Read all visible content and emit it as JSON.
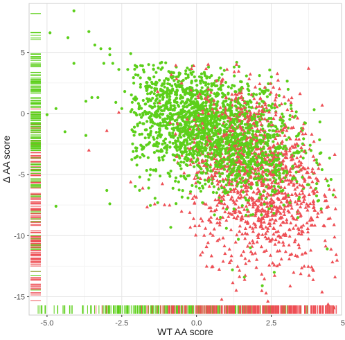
{
  "chart_data": {
    "type": "scatter",
    "title": "",
    "xlabel": "WT AA score",
    "ylabel": "Δ AA score",
    "xlim": [
      -5.6,
      4.85
    ],
    "ylim": [
      -16.5,
      9.0
    ],
    "x_ticks": [
      -5.0,
      -2.5,
      0.0,
      2.5,
      5.0
    ],
    "x_tick_labels": [
      "-5.0",
      "-2.5",
      "0.0",
      "2.5",
      "5.0"
    ],
    "y_ticks": [
      5,
      0,
      -5,
      -10,
      -15
    ],
    "y_tick_labels": [
      "5",
      "0",
      "-5",
      "-10",
      "-15"
    ],
    "grid": true,
    "rug": true,
    "colors": {
      "green": "#5ccf1a",
      "red": "#ee4f55",
      "grid_major": "#e4e4e4",
      "grid_minor": "#f3f3f3",
      "panel_border": "#cccccc"
    },
    "series": [
      {
        "marker": "circle",
        "color": "#5ccf1a",
        "points": [
          [
            -4.1,
            8.4
          ],
          [
            -4.9,
            6.6
          ],
          [
            -4.3,
            6.2
          ],
          [
            -3.6,
            6.7
          ],
          [
            -3.4,
            5.6
          ],
          [
            -3.2,
            5.3
          ],
          [
            -2.9,
            5.3
          ],
          [
            -2.9,
            4.8
          ],
          [
            -2.2,
            4.9
          ],
          [
            -4.1,
            4.1
          ],
          [
            -3.1,
            4.1
          ],
          [
            -2.8,
            4.1
          ],
          [
            -2.6,
            3.6
          ],
          [
            -2.3,
            3.6
          ],
          [
            -2.0,
            3.8
          ],
          [
            -1.6,
            4.0
          ],
          [
            -4.7,
            0.4
          ],
          [
            -5.0,
            -0.1
          ],
          [
            -4.4,
            -1.5
          ],
          [
            -3.7,
            -1.8
          ],
          [
            -3.0,
            -6.3
          ],
          [
            -2.9,
            -7.4
          ],
          [
            -4.7,
            -7.6
          ],
          [
            -3.5,
            1.3
          ],
          [
            -3.3,
            1.3
          ],
          [
            -3.7,
            1.0
          ],
          [
            -2.7,
            0.9
          ],
          [
            -2.4,
            1.8
          ],
          [
            -2.5,
            0.4
          ],
          [
            -2.1,
            1.2
          ],
          [
            -1.6,
            2.9
          ],
          [
            -1.4,
            2.4
          ],
          [
            -1.1,
            2.4
          ],
          [
            -0.8,
            2.0
          ],
          [
            -0.5,
            2.6
          ],
          [
            0.5,
            3.1
          ],
          [
            0.4,
            2.4
          ],
          [
            0.8,
            2.1
          ],
          [
            1.2,
            2.3
          ],
          [
            1.5,
            2.0
          ],
          [
            2.1,
            0.8
          ],
          [
            2.9,
            -0.6
          ],
          [
            3.4,
            -1.8
          ],
          [
            3.8,
            -2.6
          ],
          [
            4.2,
            -4.6
          ],
          [
            4.5,
            -5.4
          ],
          [
            2.6,
            -13.0
          ],
          [
            2.2,
            -14.1
          ],
          [
            1.6,
            -13.4
          ],
          [
            1.2,
            -12.8
          ],
          [
            -1.8,
            0.0
          ],
          [
            -1.5,
            -0.5
          ],
          [
            -1.2,
            -1.0
          ],
          [
            -0.8,
            -1.6
          ],
          [
            -0.4,
            -2.2
          ],
          [
            0.0,
            -2.6
          ],
          [
            0.3,
            -3.5
          ],
          [
            0.7,
            -4.2
          ],
          [
            1.1,
            -5.0
          ],
          [
            1.5,
            -6.0
          ],
          [
            -1.0,
            -3.2
          ],
          [
            -0.6,
            -5.6
          ],
          [
            -0.2,
            -6.4
          ],
          [
            0.2,
            -7.3
          ],
          [
            0.6,
            -8.3
          ],
          [
            1.0,
            -9.4
          ],
          [
            1.4,
            -10.3
          ],
          [
            1.8,
            -11.0
          ],
          [
            -1.9,
            -5.2
          ],
          [
            -1.6,
            -6.1
          ],
          [
            -1.3,
            -7.3
          ]
        ]
      },
      {
        "marker": "triangle",
        "color": "#ee4f55",
        "points": [
          [
            4.4,
            -15.6
          ],
          [
            4.6,
            -15.9
          ],
          [
            4.2,
            -14.6
          ],
          [
            3.9,
            -13.6
          ],
          [
            3.6,
            -12.5
          ],
          [
            3.1,
            -11.9
          ],
          [
            2.6,
            -12.4
          ],
          [
            2.0,
            -12.6
          ],
          [
            1.5,
            -11.6
          ],
          [
            1.1,
            -11.1
          ],
          [
            0.7,
            -10.4
          ],
          [
            0.3,
            -9.4
          ],
          [
            -0.1,
            -8.6
          ],
          [
            -0.5,
            -8.0
          ],
          [
            -0.9,
            -7.5
          ],
          [
            -1.4,
            -7.4
          ],
          [
            -1.8,
            -6.1
          ],
          [
            -2.2,
            -5.6
          ],
          [
            -3.6,
            -3.0
          ],
          [
            -3.0,
            -1.4
          ],
          [
            -2.6,
            0.1
          ],
          [
            -1.3,
            1.8
          ],
          [
            -0.5,
            2.5
          ],
          [
            0.4,
            2.0
          ],
          [
            1.3,
            1.6
          ],
          [
            2.2,
            0.3
          ],
          [
            3.0,
            -1.1
          ],
          [
            3.6,
            -3.1
          ],
          [
            4.0,
            -5.3
          ],
          [
            4.4,
            -7.6
          ],
          [
            4.6,
            -9.1
          ],
          [
            4.5,
            -11.1
          ],
          [
            4.7,
            -12.0
          ],
          [
            4.3,
            -10.4
          ],
          [
            3.2,
            -3.4
          ],
          [
            3.5,
            -4.6
          ],
          [
            2.4,
            -6.1
          ],
          [
            1.8,
            -5.2
          ]
        ]
      }
    ],
    "densities": [
      {
        "color": "#5ccf1a",
        "center": [
          0.0,
          -0.5
        ],
        "spread": [
          1.5,
          2.3
        ],
        "tilt": -0.5,
        "count": 1500
      },
      {
        "color": "#ee4f55",
        "center": [
          2.0,
          -5.0
        ],
        "spread": [
          1.1,
          3.7
        ],
        "tilt": -0.8,
        "count": 1300
      },
      {
        "color": "#5ccf1a",
        "center": [
          1.3,
          -3.2
        ],
        "spread": [
          1.2,
          2.0
        ],
        "tilt": -0.6,
        "count": 700
      }
    ],
    "rug_x": {
      "green_bins": [
        [
          -5.3,
          -5.0,
          6
        ],
        [
          -4.8,
          -4.0,
          10
        ],
        [
          -3.9,
          -3.0,
          16
        ],
        [
          -3.0,
          -2.5,
          20
        ],
        [
          -2.5,
          -1.5,
          40
        ],
        [
          -1.5,
          0.0,
          70
        ],
        [
          0.0,
          1.5,
          60
        ],
        [
          1.5,
          2.5,
          30
        ],
        [
          2.5,
          3.5,
          16
        ],
        [
          3.5,
          4.6,
          7
        ]
      ],
      "red_bins": [
        [
          -3.5,
          -3.0,
          3
        ],
        [
          -2.0,
          -1.0,
          10
        ],
        [
          -1.0,
          0.0,
          25
        ],
        [
          0.0,
          1.0,
          45
        ],
        [
          1.0,
          2.0,
          60
        ],
        [
          2.0,
          3.0,
          75
        ],
        [
          3.0,
          4.0,
          55
        ],
        [
          4.0,
          4.7,
          35
        ]
      ]
    },
    "rug_y": {
      "green_bins": [
        [
          8.0,
          8.4,
          1
        ],
        [
          6.0,
          6.8,
          5
        ],
        [
          3.0,
          5.0,
          16
        ],
        [
          0.0,
          3.0,
          45
        ],
        [
          -3.0,
          0.0,
          55
        ],
        [
          -6.0,
          -3.0,
          25
        ],
        [
          -9.0,
          -6.0,
          10
        ],
        [
          -12.0,
          -9.0,
          6
        ],
        [
          -15.0,
          -12.0,
          3
        ]
      ],
      "red_bins": [
        [
          -3.0,
          1.0,
          14
        ],
        [
          -6.0,
          -3.0,
          30
        ],
        [
          -9.0,
          -6.0,
          40
        ],
        [
          -12.0,
          -9.0,
          40
        ],
        [
          -15.5,
          -12.0,
          25
        ]
      ]
    }
  }
}
